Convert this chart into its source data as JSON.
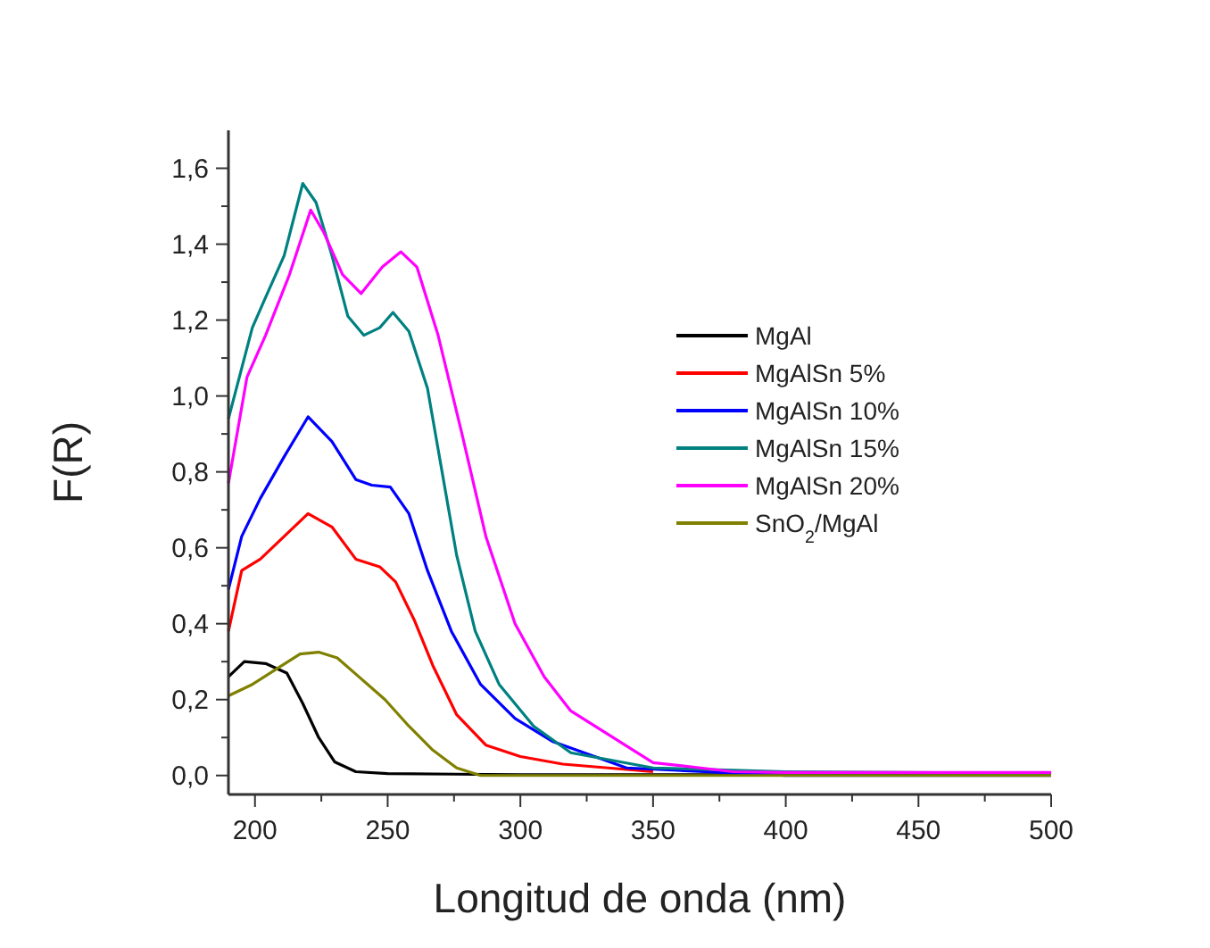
{
  "chart_data": {
    "type": "line",
    "xlabel": "Longitud de onda (nm)",
    "ylabel": "F(R)",
    "xlim": [
      190,
      500
    ],
    "ylim": [
      -0.05,
      1.7
    ],
    "xticks": [
      200,
      {
        "value": 225,
        "label": null
      },
      250,
      {
        "value": 275,
        "label": null
      },
      300,
      {
        "value": 325,
        "label": null
      },
      350,
      {
        "value": 375,
        "label": null
      },
      400,
      {
        "value": 425,
        "label": null
      },
      450,
      {
        "value": 475,
        "label": null
      },
      500
    ],
    "yticks": [
      {
        "value": 0,
        "label": "0,0"
      },
      {
        "value": 0.1,
        "label": null
      },
      {
        "value": 0.2,
        "label": "0,2"
      },
      {
        "value": 0.3,
        "label": null
      },
      {
        "value": 0.4,
        "label": "0,4"
      },
      {
        "value": 0.5,
        "label": null
      },
      {
        "value": 0.6,
        "label": "0,6"
      },
      {
        "value": 0.7,
        "label": null
      },
      {
        "value": 0.8,
        "label": "0,8"
      },
      {
        "value": 0.9,
        "label": null
      },
      {
        "value": 1.0,
        "label": "1,0"
      },
      {
        "value": 1.1,
        "label": null
      },
      {
        "value": 1.2,
        "label": "1,2"
      },
      {
        "value": 1.3,
        "label": null
      },
      {
        "value": 1.4,
        "label": "1,4"
      },
      {
        "value": 1.5,
        "label": null
      },
      {
        "value": 1.6,
        "label": "1,6"
      }
    ],
    "grid": false,
    "legend": "right",
    "line_style": "solid",
    "marker": "none",
    "series": [
      {
        "name": "MgAl",
        "color": "#000000",
        "x": [
          190,
          196,
          204,
          212,
          218,
          224,
          230,
          238,
          250,
          300,
          400,
          500
        ],
        "values": [
          0.26,
          0.3,
          0.295,
          0.27,
          0.19,
          0.1,
          0.036,
          0.01,
          0.005,
          0.002,
          0.002,
          0.002
        ]
      },
      {
        "name": "MgAlSn 5%",
        "color": "#ff0000",
        "x": [
          190,
          195,
          202,
          211,
          220,
          229,
          238,
          247,
          253,
          260,
          267,
          276,
          287,
          300,
          316,
          350
        ],
        "values": [
          0.38,
          0.54,
          0.57,
          0.63,
          0.69,
          0.655,
          0.57,
          0.55,
          0.51,
          0.41,
          0.29,
          0.16,
          0.08,
          0.05,
          0.03,
          0.01
        ]
      },
      {
        "name": "MgAlSn 10%",
        "color": "#0000ff",
        "x": [
          190,
          195,
          202,
          211,
          220,
          229,
          238,
          244,
          251,
          258,
          265,
          274,
          285,
          298,
          312,
          340,
          400,
          500
        ],
        "values": [
          0.49,
          0.63,
          0.73,
          0.84,
          0.945,
          0.88,
          0.78,
          0.765,
          0.76,
          0.69,
          0.54,
          0.38,
          0.24,
          0.15,
          0.09,
          0.02,
          0.0,
          0.0
        ]
      },
      {
        "name": "MgAlSn 15%",
        "color": "#008080",
        "x": [
          190,
          199,
          204,
          211,
          218,
          223,
          229,
          235,
          241,
          247,
          252,
          258,
          265,
          270,
          276,
          283,
          292,
          305,
          319,
          350,
          400,
          500
        ],
        "values": [
          0.94,
          1.18,
          1.26,
          1.37,
          1.56,
          1.51,
          1.37,
          1.21,
          1.16,
          1.18,
          1.22,
          1.17,
          1.02,
          0.82,
          0.58,
          0.38,
          0.24,
          0.13,
          0.06,
          0.02,
          0.01,
          0.005
        ]
      },
      {
        "name": "MgAlSn 20%",
        "color": "#ff00ff",
        "x": [
          190,
          197,
          204,
          213,
          221,
          226,
          233,
          240,
          248,
          255,
          261,
          269,
          278,
          287,
          298,
          309,
          319,
          350,
          380,
          400,
          500
        ],
        "values": [
          0.77,
          1.05,
          1.16,
          1.32,
          1.49,
          1.43,
          1.32,
          1.27,
          1.34,
          1.38,
          1.34,
          1.16,
          0.9,
          0.63,
          0.4,
          0.26,
          0.17,
          0.034,
          0.01,
          0.008,
          0.008
        ]
      },
      {
        "name": "SnO$_{2}$/MgAl",
        "color": "#808000",
        "x": [
          190,
          199,
          208,
          217,
          224,
          231,
          240,
          249,
          258,
          267,
          276,
          285,
          300,
          400,
          500
        ],
        "values": [
          0.21,
          0.24,
          0.28,
          0.32,
          0.325,
          0.31,
          0.255,
          0.2,
          0.13,
          0.067,
          0.02,
          0.0,
          0.0,
          0.0,
          0.0
        ]
      }
    ]
  }
}
